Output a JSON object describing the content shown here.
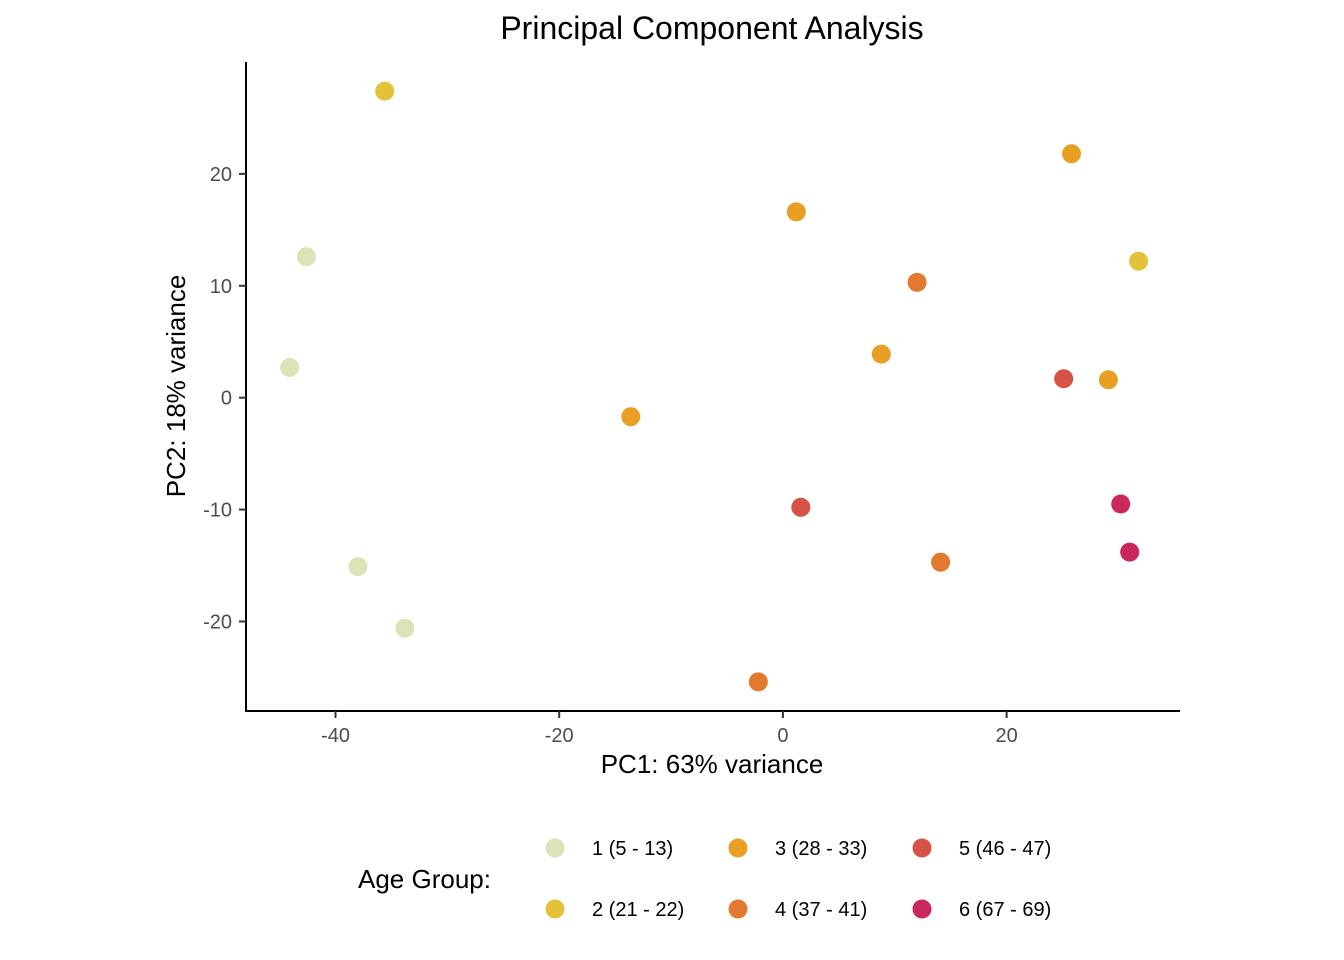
{
  "chart_data": {
    "type": "scatter",
    "title": "Principal Component Analysis",
    "xlabel": "PC1: 63% variance",
    "ylabel": "PC2: 18% variance",
    "xlim": [
      -48,
      35.5
    ],
    "ylim": [
      -28,
      30
    ],
    "xticks": [
      -40,
      -20,
      0,
      20
    ],
    "yticks": [
      -20,
      -10,
      0,
      10,
      20
    ],
    "grid": false,
    "legend": {
      "title": "Age Group:",
      "placement": "bottom",
      "entries": [
        {
          "name": "1 (5 - 13)",
          "color": "#dce3b7"
        },
        {
          "name": "2 (21 - 22)",
          "color": "#e3c23a"
        },
        {
          "name": "3 (28 - 33)",
          "color": "#e89f23"
        },
        {
          "name": "4 (37 - 41)",
          "color": "#e2792f"
        },
        {
          "name": "5 (46 - 47)",
          "color": "#d65246"
        },
        {
          "name": "6 (67 - 69)",
          "color": "#c9285a"
        }
      ]
    },
    "series": [
      {
        "name": "1 (5 - 13)",
        "points": [
          {
            "x": -42.6,
            "y": 12.6
          },
          {
            "x": -44.1,
            "y": 2.7
          },
          {
            "x": -38.0,
            "y": -15.1
          },
          {
            "x": -33.8,
            "y": -20.6
          }
        ]
      },
      {
        "name": "2 (21 - 22)",
        "points": [
          {
            "x": -35.6,
            "y": 27.4
          },
          {
            "x": 31.8,
            "y": 12.2
          }
        ]
      },
      {
        "name": "3 (28 - 33)",
        "points": [
          {
            "x": 25.8,
            "y": 21.8
          },
          {
            "x": 1.2,
            "y": 16.6
          },
          {
            "x": 8.8,
            "y": 3.9
          },
          {
            "x": 29.1,
            "y": 1.6
          },
          {
            "x": -13.6,
            "y": -1.7
          }
        ]
      },
      {
        "name": "4 (37 - 41)",
        "points": [
          {
            "x": 12.0,
            "y": 10.3
          },
          {
            "x": 14.1,
            "y": -14.7
          },
          {
            "x": -2.2,
            "y": -25.4
          }
        ]
      },
      {
        "name": "5 (46 - 47)",
        "points": [
          {
            "x": 25.1,
            "y": 1.7
          },
          {
            "x": 1.6,
            "y": -9.8
          }
        ]
      },
      {
        "name": "6 (67 - 69)",
        "points": [
          {
            "x": 30.2,
            "y": -9.5
          },
          {
            "x": 31.0,
            "y": -13.8
          }
        ]
      }
    ]
  }
}
